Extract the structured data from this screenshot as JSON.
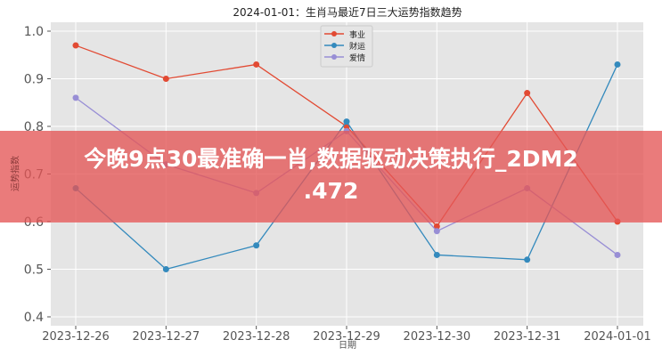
{
  "chart_data": {
    "type": "line",
    "title": "2024-01-01：生肖马最近7日三大运势指数趋势",
    "xlabel": "日期",
    "ylabel": "运势指数",
    "categories": [
      "2023-12-26",
      "2023-12-27",
      "2023-12-28",
      "2023-12-29",
      "2023-12-30",
      "2023-12-31",
      "2024-01-01"
    ],
    "ylim": [
      0.4,
      1.0
    ],
    "yticks": [
      "0.4",
      "0.5",
      "0.6",
      "0.7",
      "0.8",
      "0.9",
      "1.0"
    ],
    "grid": true,
    "legend_position": "top-center",
    "series": [
      {
        "name": "事业",
        "color": "#e24a33",
        "values": [
          0.97,
          0.9,
          0.93,
          0.8,
          0.59,
          0.87,
          0.6
        ]
      },
      {
        "name": "财运",
        "color": "#348abd",
        "values": [
          0.67,
          0.5,
          0.55,
          0.81,
          0.53,
          0.52,
          0.93
        ]
      },
      {
        "name": "爱情",
        "color": "#988ed5",
        "values": [
          0.86,
          0.72,
          0.66,
          0.79,
          0.58,
          0.67,
          0.53
        ]
      }
    ]
  },
  "banner": {
    "line1": "今晚9点30最准确一肖,数据驱动决策执行_2DM2",
    "line2": ".472"
  }
}
